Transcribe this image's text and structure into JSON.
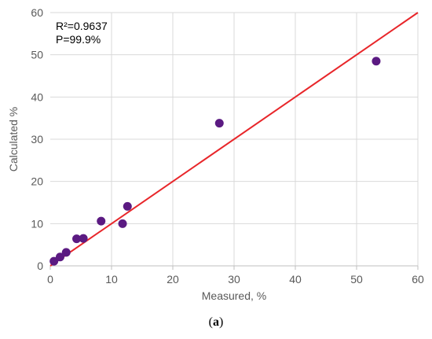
{
  "chart_data": {
    "type": "scatter",
    "title": "",
    "xlabel": "Measured, %",
    "ylabel": "Calculated %",
    "xlim": [
      0,
      60
    ],
    "ylim": [
      0,
      60
    ],
    "xticks": [
      "0",
      "10",
      "20",
      "30",
      "40",
      "50",
      "60"
    ],
    "yticks": [
      "0",
      "10",
      "20",
      "30",
      "40",
      "50",
      "60"
    ],
    "grid": true,
    "annotations": [
      "R²=0.9637",
      "P=99.9%"
    ],
    "points": {
      "x": [
        0.6,
        1.6,
        2.6,
        4.3,
        5.4,
        8.3,
        11.8,
        12.6,
        27.6,
        53.2
      ],
      "y": [
        1.1,
        2.1,
        3.2,
        6.4,
        6.5,
        10.6,
        10.0,
        14.1,
        33.8,
        48.5
      ]
    },
    "reference_line": {
      "x": [
        0,
        60
      ],
      "y": [
        0,
        60
      ]
    },
    "colors": {
      "points": "#5b1a82",
      "line": "#e8262a",
      "grid": "#d9d9d9",
      "axis": "#bfbfbf"
    }
  },
  "caption": {
    "open": "(",
    "letter": "a",
    "close": ")"
  }
}
